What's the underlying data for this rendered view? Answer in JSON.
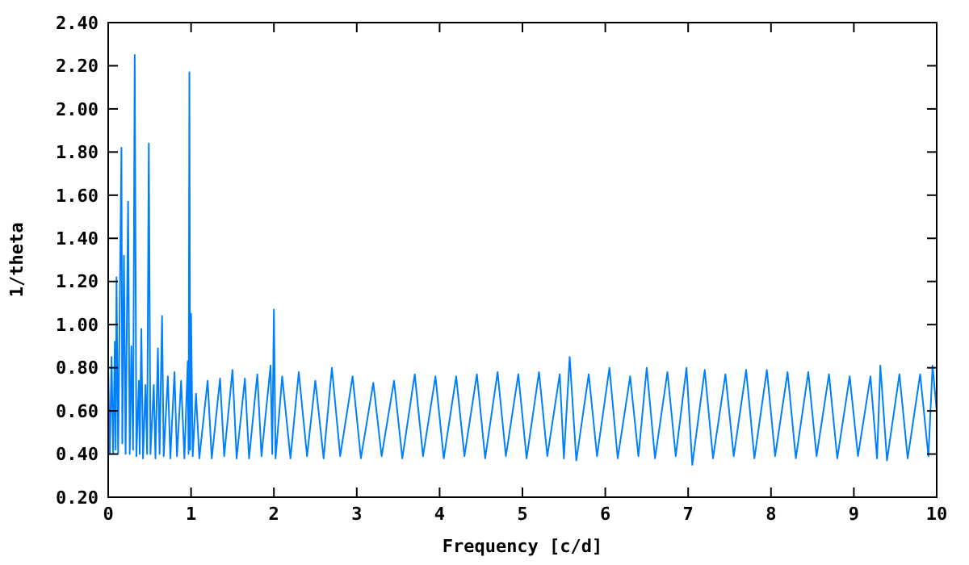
{
  "chart_data": {
    "type": "line",
    "xlabel": "Frequency [c/d]",
    "ylabel": "1/theta",
    "xlim": [
      0,
      10
    ],
    "ylim": [
      0.2,
      2.4
    ],
    "xticks": [
      0,
      1,
      2,
      3,
      4,
      5,
      6,
      7,
      8,
      9,
      10
    ],
    "yticks": [
      {
        "value": 0.2,
        "label": "0.20"
      },
      {
        "value": 0.4,
        "label": "0.40"
      },
      {
        "value": 0.6,
        "label": "0.60"
      },
      {
        "value": 0.8,
        "label": "0.80"
      },
      {
        "value": 1.0,
        "label": "1.00"
      },
      {
        "value": 1.2,
        "label": "1.20"
      },
      {
        "value": 1.4,
        "label": "1.40"
      },
      {
        "value": 1.6,
        "label": "1.60"
      },
      {
        "value": 1.8,
        "label": "1.80"
      },
      {
        "value": 2.0,
        "label": "2.00"
      },
      {
        "value": 2.2,
        "label": "2.20"
      },
      {
        "value": 2.4,
        "label": "2.40"
      }
    ],
    "grid": false,
    "marker": "none",
    "line_style": "solid",
    "series": [
      {
        "color": "#0080ff",
        "x": [
          0,
          0.02,
          0.04,
          0.06,
          0.08,
          0.09,
          0.1,
          0.12,
          0.16,
          0.17,
          0.19,
          0.21,
          0.24,
          0.26,
          0.28,
          0.3,
          0.32,
          0.34,
          0.37,
          0.38,
          0.4,
          0.42,
          0.45,
          0.47,
          0.49,
          0.51,
          0.55,
          0.57,
          0.6,
          0.62,
          0.65,
          0.67,
          0.72,
          0.75,
          0.8,
          0.83,
          0.88,
          0.92,
          0.96,
          0.97,
          0.98,
          0.99,
          1.0,
          1.02,
          1.06,
          1.1,
          1.2,
          1.25,
          1.35,
          1.4,
          1.5,
          1.55,
          1.65,
          1.7,
          1.8,
          1.85,
          1.96,
          1.98,
          2.0,
          2.02,
          2.1,
          2.2,
          2.3,
          2.4,
          2.5,
          2.6,
          2.7,
          2.8,
          2.95,
          3.05,
          3.2,
          3.3,
          3.45,
          3.55,
          3.7,
          3.8,
          3.95,
          4.05,
          4.2,
          4.3,
          4.45,
          4.55,
          4.7,
          4.8,
          4.95,
          5.05,
          5.2,
          5.3,
          5.45,
          5.5,
          5.57,
          5.65,
          5.8,
          5.9,
          6.05,
          6.15,
          6.3,
          6.4,
          6.5,
          6.6,
          6.75,
          6.85,
          6.98,
          7.05,
          7.2,
          7.3,
          7.45,
          7.55,
          7.7,
          7.8,
          7.95,
          8.05,
          8.2,
          8.3,
          8.45,
          8.55,
          8.7,
          8.8,
          8.95,
          9.05,
          9.2,
          9.28,
          9.32,
          9.4,
          9.55,
          9.65,
          9.8,
          9.9,
          9.95,
          10
        ],
        "values": [
          0.8,
          0.4,
          0.85,
          0.4,
          0.92,
          0.42,
          1.22,
          0.4,
          1.82,
          0.45,
          1.32,
          0.4,
          1.57,
          0.4,
          0.9,
          0.42,
          2.25,
          0.39,
          0.74,
          0.4,
          0.98,
          0.38,
          0.72,
          0.4,
          1.84,
          0.4,
          0.72,
          0.38,
          0.89,
          0.4,
          1.04,
          0.39,
          0.76,
          0.38,
          0.78,
          0.39,
          0.74,
          0.38,
          0.83,
          0.4,
          2.17,
          0.42,
          1.05,
          0.39,
          0.68,
          0.38,
          0.74,
          0.38,
          0.75,
          0.39,
          0.79,
          0.38,
          0.75,
          0.38,
          0.77,
          0.39,
          0.81,
          0.4,
          1.07,
          0.38,
          0.76,
          0.38,
          0.78,
          0.39,
          0.74,
          0.38,
          0.8,
          0.39,
          0.76,
          0.38,
          0.73,
          0.39,
          0.74,
          0.38,
          0.77,
          0.39,
          0.76,
          0.38,
          0.76,
          0.39,
          0.77,
          0.38,
          0.78,
          0.39,
          0.77,
          0.38,
          0.78,
          0.39,
          0.77,
          0.38,
          0.85,
          0.37,
          0.77,
          0.39,
          0.8,
          0.38,
          0.76,
          0.39,
          0.8,
          0.38,
          0.78,
          0.39,
          0.8,
          0.35,
          0.79,
          0.38,
          0.77,
          0.39,
          0.79,
          0.38,
          0.79,
          0.39,
          0.78,
          0.38,
          0.78,
          0.39,
          0.77,
          0.38,
          0.76,
          0.39,
          0.76,
          0.38,
          0.81,
          0.37,
          0.77,
          0.38,
          0.77,
          0.39,
          0.81,
          0.6
        ]
      }
    ]
  }
}
